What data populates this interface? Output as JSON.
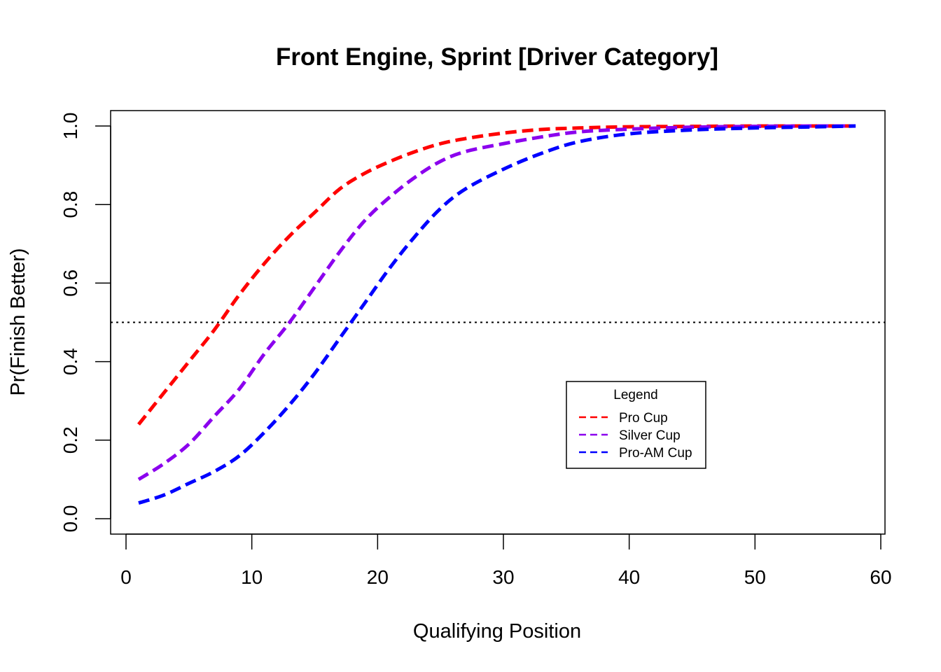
{
  "chart_data": {
    "type": "line",
    "title": "Front Engine, Sprint [Driver Category]",
    "xlabel": "Qualifying Position",
    "ylabel": "Pr(Finish Better)",
    "xlim": [
      0,
      60
    ],
    "ylim": [
      0,
      1
    ],
    "xticks": [
      0,
      10,
      20,
      30,
      40,
      50,
      60
    ],
    "yticks": [
      0.0,
      0.2,
      0.4,
      0.6,
      0.8,
      1.0
    ],
    "xtick_labels": [
      "0",
      "10",
      "20",
      "30",
      "40",
      "50",
      "60"
    ],
    "ytick_labels": [
      "0.0",
      "0.2",
      "0.4",
      "0.6",
      "0.8",
      "1.0"
    ],
    "grid": false,
    "reference_line": {
      "y": 0.5,
      "style": "dotted",
      "color": "#000000"
    },
    "legend": {
      "title": "Legend",
      "position": "center-right"
    },
    "x": [
      1,
      3,
      5,
      7,
      9,
      11,
      13,
      15,
      17,
      19,
      21,
      23,
      25,
      27,
      30,
      33,
      36,
      40,
      45,
      50,
      55,
      58
    ],
    "series": [
      {
        "name": "Pro Cup",
        "color": "#ff0000",
        "values": [
          0.24,
          0.32,
          0.4,
          0.48,
          0.57,
          0.65,
          0.72,
          0.78,
          0.84,
          0.88,
          0.91,
          0.935,
          0.955,
          0.968,
          0.982,
          0.991,
          0.995,
          0.998,
          0.999,
          1.0,
          1.0,
          1.0
        ]
      },
      {
        "name": "Silver Cup",
        "color": "#8b00ee",
        "values": [
          0.1,
          0.14,
          0.19,
          0.26,
          0.33,
          0.42,
          0.5,
          0.59,
          0.68,
          0.76,
          0.82,
          0.87,
          0.91,
          0.935,
          0.955,
          0.972,
          0.985,
          0.992,
          0.997,
          0.999,
          1.0,
          1.0
        ]
      },
      {
        "name": "Pro-AM Cup",
        "color": "#0000ff",
        "values": [
          0.04,
          0.06,
          0.09,
          0.12,
          0.16,
          0.22,
          0.29,
          0.37,
          0.46,
          0.55,
          0.64,
          0.72,
          0.79,
          0.84,
          0.89,
          0.93,
          0.96,
          0.98,
          0.99,
          0.995,
          0.998,
          1.0
        ]
      }
    ]
  }
}
